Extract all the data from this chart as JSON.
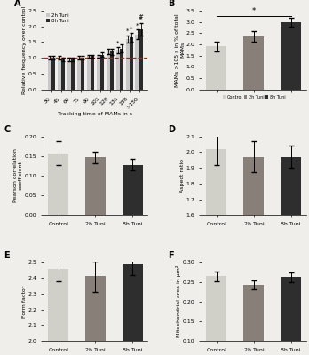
{
  "panel_A": {
    "categories": [
      "30",
      "45",
      "60",
      "75",
      "90",
      "105",
      "120",
      "135",
      "150",
      ">150"
    ],
    "light_values": [
      1.0,
      1.0,
      0.95,
      1.0,
      1.05,
      1.05,
      1.2,
      1.25,
      1.6,
      1.75
    ],
    "dark_values": [
      1.0,
      0.95,
      0.95,
      1.0,
      1.05,
      1.1,
      1.2,
      1.3,
      1.65,
      1.9
    ],
    "light_errors": [
      0.05,
      0.05,
      0.05,
      0.05,
      0.05,
      0.05,
      0.08,
      0.1,
      0.12,
      0.15
    ],
    "dark_errors": [
      0.05,
      0.05,
      0.05,
      0.05,
      0.05,
      0.08,
      0.1,
      0.12,
      0.15,
      0.2
    ],
    "ylabel": "Relative frequency over control",
    "xlabel": "Tracking time of MAMs in s",
    "ylim": [
      0,
      2.5
    ],
    "yticks": [
      0,
      0.5,
      1.0,
      1.5,
      2.0,
      2.5
    ],
    "light_label": "2h Tuni",
    "dark_label": "8h Tuni",
    "light_color": "#c8c8c8",
    "dark_color": "#2a2a2a"
  },
  "panel_B": {
    "categories": [
      "Control",
      "2h Tuni",
      "8h Tuni"
    ],
    "values": [
      1.9,
      2.35,
      2.98
    ],
    "errors": [
      0.2,
      0.25,
      0.2
    ],
    "ylabel": "MAMs >105 s in % of total\nMAMs",
    "ylim": [
      0.0,
      3.5
    ],
    "yticks": [
      0.0,
      0.5,
      1.0,
      1.5,
      2.0,
      2.5,
      3.0,
      3.5
    ],
    "colors": [
      "#d0cfc8",
      "#888078",
      "#2e2e2e"
    ]
  },
  "panel_C": {
    "categories": [
      "Control",
      "2h Tuni",
      "8h Tuni"
    ],
    "values": [
      0.157,
      0.147,
      0.128
    ],
    "errors": [
      0.03,
      0.015,
      0.015
    ],
    "ylabel": "Pearson correlation\ncoefficient",
    "ylim": [
      0,
      0.2
    ],
    "yticks": [
      0,
      0.05,
      0.1,
      0.15,
      0.2
    ],
    "colors": [
      "#d0cfc8",
      "#888078",
      "#2e2e2e"
    ]
  },
  "panel_D": {
    "categories": [
      "Control",
      "2h Tuni",
      "8h Tuni"
    ],
    "values": [
      2.02,
      1.97,
      1.97
    ],
    "errors": [
      0.1,
      0.1,
      0.07
    ],
    "ylabel": "Aspect ratio",
    "ylim": [
      1.6,
      2.1
    ],
    "yticks": [
      1.6,
      1.7,
      1.8,
      1.9,
      2.0,
      2.1
    ],
    "colors": [
      "#d0cfc8",
      "#888078",
      "#2e2e2e"
    ]
  },
  "panel_E": {
    "categories": [
      "Control",
      "2h Tuni",
      "8h Tuni"
    ],
    "values": [
      2.46,
      2.41,
      2.49
    ],
    "errors": [
      0.08,
      0.1,
      0.07
    ],
    "ylabel": "Form factor",
    "ylim": [
      2.0,
      2.5
    ],
    "yticks": [
      2.0,
      2.1,
      2.2,
      2.3,
      2.4,
      2.5
    ],
    "colors": [
      "#d0cfc8",
      "#888078",
      "#2e2e2e"
    ]
  },
  "panel_F": {
    "categories": [
      "Control",
      "2h Tuni",
      "8h Tuni"
    ],
    "values": [
      0.264,
      0.242,
      0.262
    ],
    "errors": [
      0.012,
      0.012,
      0.012
    ],
    "ylabel": "Mitochondrial area in μm²",
    "ylim": [
      0.1,
      0.3
    ],
    "yticks": [
      0.1,
      0.15,
      0.2,
      0.25,
      0.3
    ],
    "colors": [
      "#d0cfc8",
      "#888078",
      "#2e2e2e"
    ]
  },
  "legend_colors": [
    "#d0cfc8",
    "#888078",
    "#2e2e2e"
  ],
  "legend_labels": [
    "Control",
    "2h Tuni",
    "8h Tuni"
  ],
  "bg_color": "#f0eeeb"
}
